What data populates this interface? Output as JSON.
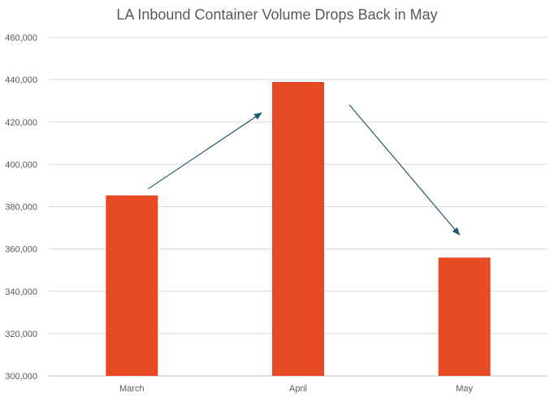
{
  "chart_data": {
    "type": "bar",
    "title": "LA Inbound Container Volume Drops Back in May",
    "categories": [
      "March",
      "April",
      "May"
    ],
    "values": [
      385300,
      438900,
      355900
    ],
    "ylim": [
      300000,
      460000
    ],
    "yticks": [
      "300,000",
      "320,000",
      "340,000",
      "360,000",
      "380,000",
      "400,000",
      "420,000",
      "440,000",
      "460,000"
    ],
    "grid": true,
    "legend": "none",
    "bar_color": "#e64a22",
    "arrow_color": "#1f5b6b"
  }
}
